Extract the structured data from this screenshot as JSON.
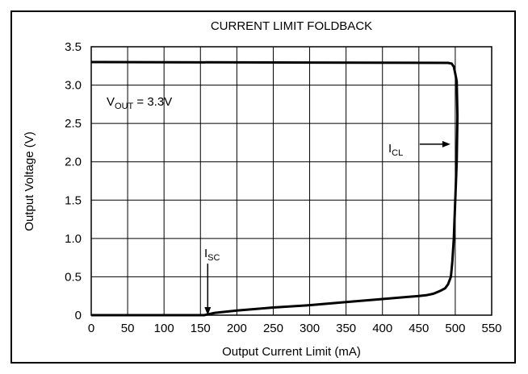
{
  "chart_data": {
    "type": "line",
    "title": "CURRENT LIMIT FOLDBACK",
    "xlabel": "Output Current Limit (mA)",
    "ylabel": "Output Voltage (V)",
    "xlim": [
      0,
      550
    ],
    "ylim": [
      0,
      3.5
    ],
    "x_ticks": [
      0,
      50,
      100,
      150,
      200,
      250,
      300,
      350,
      400,
      450,
      500,
      550
    ],
    "y_ticks": [
      0,
      0.5,
      1.0,
      1.5,
      2.0,
      2.5,
      3.0,
      3.5
    ],
    "x_tick_labels": [
      "0",
      "50",
      "100",
      "150",
      "200",
      "250",
      "300",
      "350",
      "400",
      "450",
      "500",
      "550"
    ],
    "y_tick_labels": [
      "0",
      "0.5",
      "1.0",
      "1.5",
      "2.0",
      "2.5",
      "3.0",
      "3.5"
    ],
    "grid": true,
    "series": [
      {
        "x": [
          0,
          5,
          490,
          495,
          498,
          500,
          502,
          503,
          502,
          500,
          498,
          496,
          494,
          492,
          490,
          486,
          480,
          470,
          460,
          450,
          400,
          350,
          300,
          250,
          200,
          170,
          160,
          155,
          150,
          100,
          0
        ],
        "y": [
          3.3,
          3.3,
          3.29,
          3.28,
          3.24,
          3.15,
          3.05,
          2.6,
          2.0,
          1.5,
          1.0,
          0.7,
          0.5,
          0.45,
          0.4,
          0.35,
          0.32,
          0.28,
          0.26,
          0.25,
          0.21,
          0.17,
          0.13,
          0.1,
          0.06,
          0.03,
          0.01,
          0.0,
          0.0,
          0.0,
          0.0
        ]
      }
    ],
    "annotations": [
      {
        "main": "V",
        "sub": "OUT",
        "tail": " = 3.3V"
      },
      {
        "main": "I",
        "sub": "CL",
        "x": 500,
        "y": 2.23
      },
      {
        "main": "I",
        "sub": "SC",
        "x": 160,
        "y": 0.0
      }
    ]
  }
}
